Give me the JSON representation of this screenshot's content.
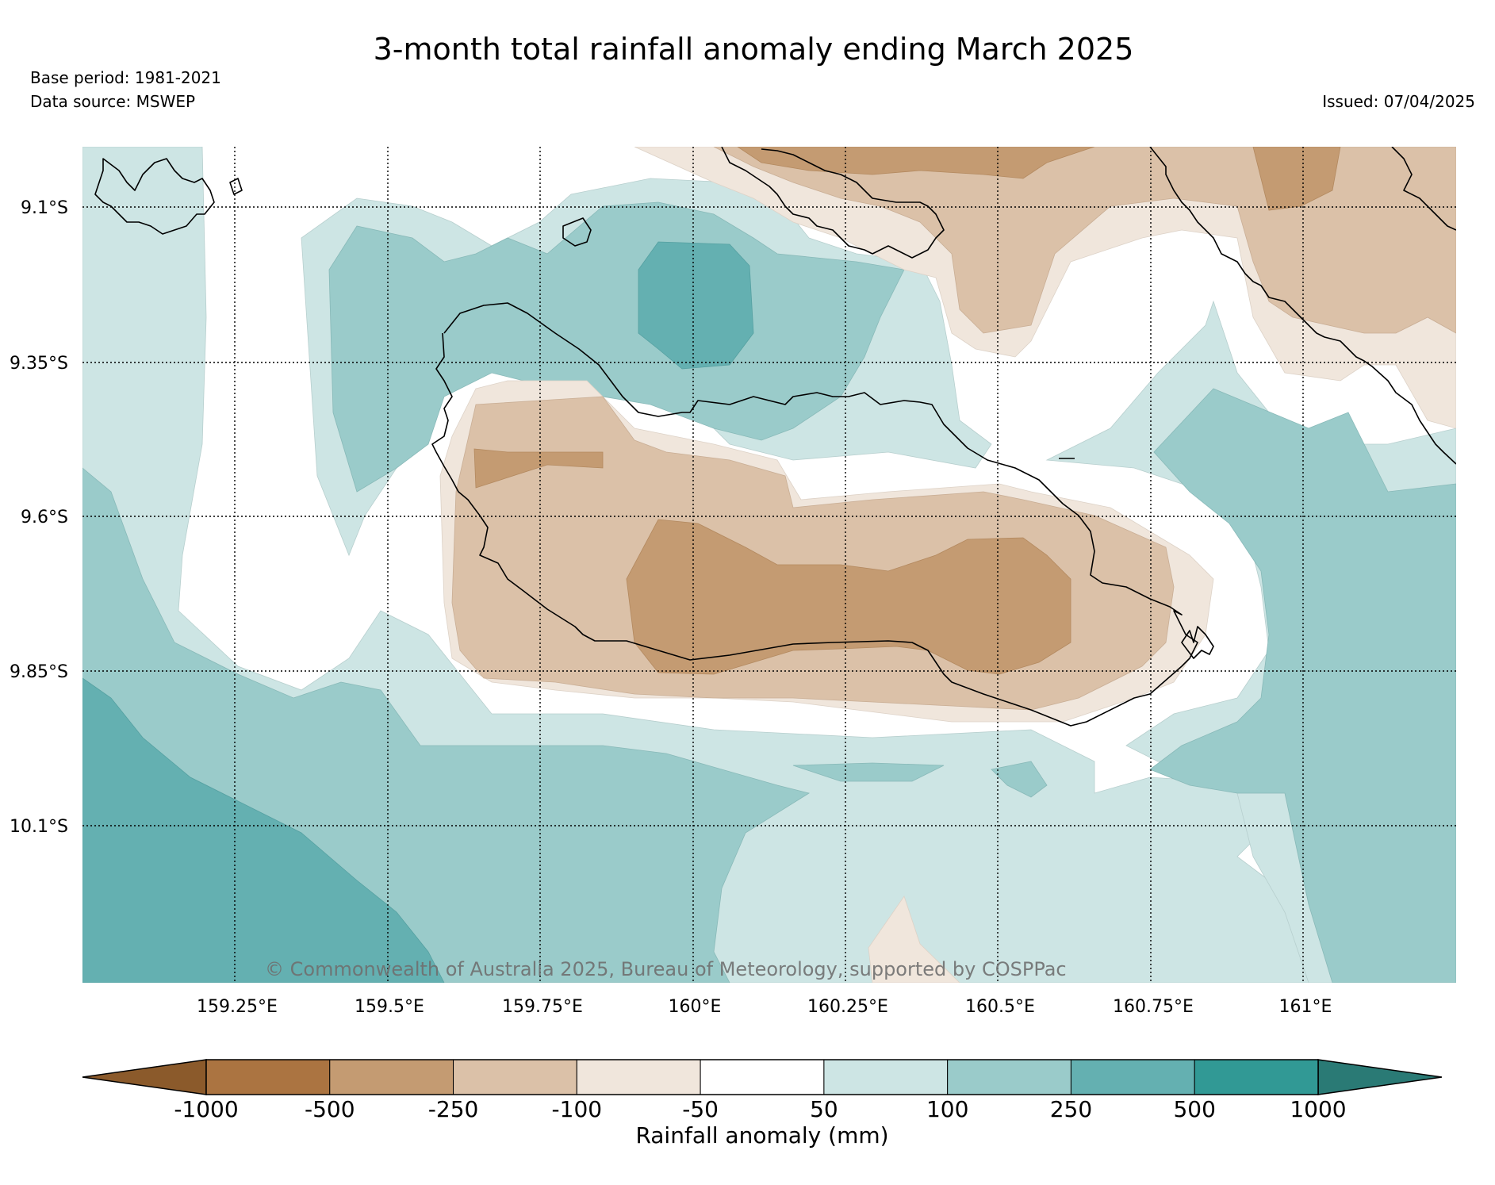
{
  "header": {
    "title": "3-month total rainfall anomaly ending March 2025",
    "base_period": "Base period: 1981-2021",
    "data_source": "Data source: MSWEP",
    "issued": "Issued: 07/04/2025"
  },
  "map": {
    "lat_labels": [
      "9.1°S",
      "9.35°S",
      "9.6°S",
      "9.85°S",
      "10.1°S"
    ],
    "lon_labels": [
      "159.25°E",
      "159.5°E",
      "159.75°E",
      "160°E",
      "160.25°E",
      "160.5°E",
      "160.75°E",
      "161°E"
    ],
    "gridlines": true,
    "gridline_style": "dotted",
    "copyright": "© Commonwealth of Australia 2025, Bureau of Meteorology, supported by COSPPac"
  },
  "colorbar": {
    "label": "Rainfall anomaly (mm)",
    "tick_labels": [
      "-1000",
      "-500",
      "-250",
      "-100",
      "-50",
      "50",
      "100",
      "250",
      "500",
      "1000"
    ],
    "extend_low_color": "#8b5a2b",
    "extend_high_color": "#2a7a75",
    "bin_colors": [
      "#ab7441",
      "#c49b72",
      "#dbc1a8",
      "#f0e6dc",
      "#ffffff",
      "#cde5e4",
      "#9acbca",
      "#64b0b1",
      "#319995"
    ]
  },
  "colors": {
    "dry_1": "#f0e6dc",
    "dry_2": "#dbc1a8",
    "dry_3": "#c49b72",
    "wet_1": "#cde5e4",
    "wet_2": "#9acbca",
    "wet_3": "#64b0b1",
    "coastline": "#000000"
  }
}
